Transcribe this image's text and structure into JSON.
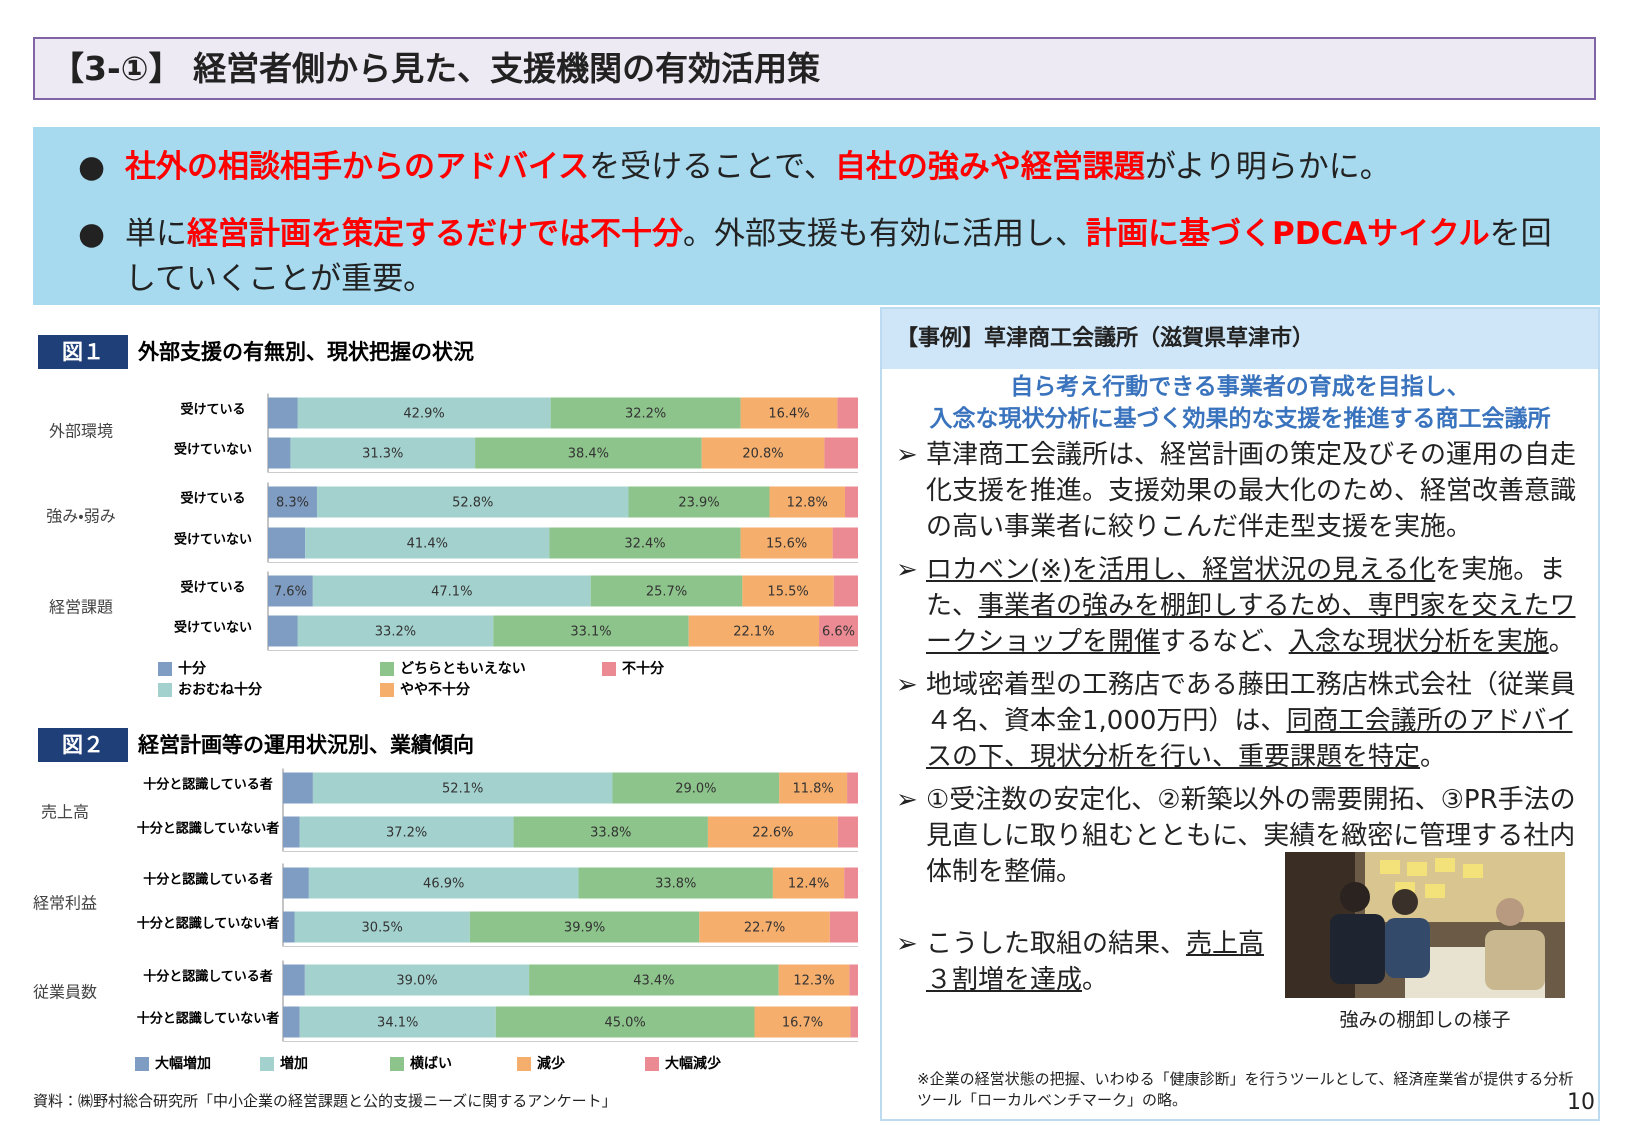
{
  "header": {
    "title": "【3-①】 経営者側から見た、支援機関の有効活用策"
  },
  "summary": {
    "bullets": [
      [
        {
          "text": "社外の相談相手からのアドバイス",
          "emphasis": true
        },
        {
          "text": "を受けることで、"
        },
        {
          "text": "自社の強みや経営課題",
          "emphasis": true
        },
        {
          "text": "がより明らかに。"
        }
      ],
      [
        {
          "text": "単に"
        },
        {
          "text": "経営計画を策定するだけでは不十分",
          "emphasis": true
        },
        {
          "text": "。外部支援も有効に活用し、"
        },
        {
          "text": "計画に基づくPDCAサイクル",
          "emphasis": true
        },
        {
          "text": "を回していくことが重要。"
        }
      ]
    ]
  },
  "chart_data": [
    {
      "type": "bar",
      "stacked": true,
      "horizontal": true,
      "figure_label": "図１",
      "title": "外部支援の有無別、現状把握の状況",
      "groups": [
        "外部環境",
        "強み・弱み",
        "経営課題"
      ],
      "categories": [
        "受けている",
        "受けていない",
        "受けている",
        "受けていない",
        "受けている",
        "受けていない"
      ],
      "xlim": [
        0,
        100
      ],
      "series": [
        {
          "name": "十分",
          "color": "#7f9cc2",
          "values": [
            5.0,
            3.8,
            8.3,
            6.3,
            7.6,
            5.0
          ],
          "value_labels": [
            null,
            null,
            "8.3%",
            null,
            "7.6%",
            null
          ]
        },
        {
          "name": "おおむね十分",
          "color": "#a3d1ce",
          "values": [
            42.9,
            31.3,
            52.8,
            41.4,
            47.1,
            33.2
          ],
          "value_labels": [
            "42.9%",
            "31.3%",
            "52.8%",
            "41.4%",
            "47.1%",
            "33.2%"
          ]
        },
        {
          "name": "どちらともいえない",
          "color": "#8dc48b",
          "values": [
            32.2,
            38.4,
            23.9,
            32.4,
            25.7,
            33.1
          ],
          "value_labels": [
            "32.2%",
            "38.4%",
            "23.9%",
            "32.4%",
            "25.7%",
            "33.1%"
          ]
        },
        {
          "name": "やや不十分",
          "color": "#f6ae6c",
          "values": [
            16.4,
            20.8,
            12.8,
            15.6,
            15.5,
            22.1
          ],
          "value_labels": [
            "16.4%",
            "20.8%",
            "12.8%",
            "15.6%",
            "15.5%",
            "22.1%"
          ]
        },
        {
          "name": "不十分",
          "color": "#eb8a93",
          "values": [
            3.5,
            5.7,
            2.2,
            4.3,
            4.1,
            6.6
          ],
          "value_labels": [
            null,
            null,
            null,
            null,
            null,
            "6.6%"
          ]
        }
      ]
    },
    {
      "type": "bar",
      "stacked": true,
      "horizontal": true,
      "figure_label": "図２",
      "title": "経営計画等の運用状況別、業績傾向",
      "groups": [
        "売上高",
        "経常利益",
        "従業員数"
      ],
      "categories": [
        "十分と認識している者",
        "十分と認識していない者",
        "十分と認識している者",
        "十分と認識していない者",
        "十分と認識している者",
        "十分と認識していない者"
      ],
      "xlim": [
        0,
        100
      ],
      "series": [
        {
          "name": "大幅増加",
          "color": "#7f9cc2",
          "values": [
            5.2,
            2.9,
            4.5,
            2.0,
            3.8,
            2.9
          ],
          "value_labels": [
            null,
            null,
            null,
            null,
            null,
            null
          ]
        },
        {
          "name": "増加",
          "color": "#a3d1ce",
          "values": [
            52.1,
            37.2,
            46.9,
            30.5,
            39.0,
            34.1
          ],
          "value_labels": [
            "52.1%",
            "37.2%",
            "46.9%",
            "30.5%",
            "39.0%",
            "34.1%"
          ]
        },
        {
          "name": "横ばい",
          "color": "#8dc48b",
          "values": [
            29.0,
            33.8,
            33.8,
            39.9,
            43.4,
            45.0
          ],
          "value_labels": [
            "29.0%",
            "33.8%",
            "33.8%",
            "39.9%",
            "43.4%",
            "45.0%"
          ]
        },
        {
          "name": "減少",
          "color": "#f6ae6c",
          "values": [
            11.8,
            22.6,
            12.4,
            22.7,
            12.3,
            16.7
          ],
          "value_labels": [
            "11.8%",
            "22.6%",
            "12.4%",
            "22.7%",
            "12.3%",
            "16.7%"
          ]
        },
        {
          "name": "大幅減少",
          "color": "#eb8a93",
          "values": [
            1.9,
            3.5,
            2.4,
            4.9,
            1.5,
            1.3
          ],
          "value_labels": [
            null,
            null,
            null,
            null,
            null,
            null
          ]
        }
      ]
    }
  ],
  "source": "資料：㈱野村総合研究所「中小企業の経営課題と公的支援ニーズに関するアンケート」",
  "case": {
    "header": "【事例】草津商工会議所（滋賀県草津市）",
    "subtitle": [
      "自ら考え行動できる事業者の育成を目指し、",
      "入念な現状分析に基づく効果的な支援を推進する商工会議所"
    ],
    "items": [
      [
        {
          "text": "草津商工会議所は、経営計画の策定及びその運用の自走化支援を推進。支援効果の最大化のため、経営改善意識の高い事業者に絞りこんだ伴走型支援を実施。"
        }
      ],
      [
        {
          "text": "ロカベン(※)を活用し、経営状況の見える化",
          "underline": true
        },
        {
          "text": "を実施。また、"
        },
        {
          "text": "事業者の強みを棚卸しするため、専門家を交えたワークショップを開催",
          "underline": true
        },
        {
          "text": "するなど、"
        },
        {
          "text": "入念な現状分析を実施",
          "underline": true
        },
        {
          "text": "。"
        }
      ],
      [
        {
          "text": "地域密着型の工務店である藤田工務店株式会社（従業員４名、資本金1,000万円）は、"
        },
        {
          "text": "同商工会議所のアドバイスの下、現状分析を行い、重要課題を特定",
          "underline": true
        },
        {
          "text": "。"
        }
      ],
      [
        {
          "text": "①受注数の安定化、②新築以外の需要開拓、③PR手法の見直しに取り組むとともに、実績を緻密に管理する社内体制を整備。"
        }
      ],
      [
        {
          "text": "こうした取組の結果、"
        },
        {
          "text": "売上高３割増を達成",
          "underline": true
        },
        {
          "text": "。"
        }
      ]
    ],
    "photo_caption": "強みの棚卸しの様子",
    "footnote": "※企業の経営状態の把握、いわゆる「健康診断」を行うツールとして、経済産業省が提供する分析ツール「ローカルベンチマーク」の略。"
  },
  "page_number": "10"
}
